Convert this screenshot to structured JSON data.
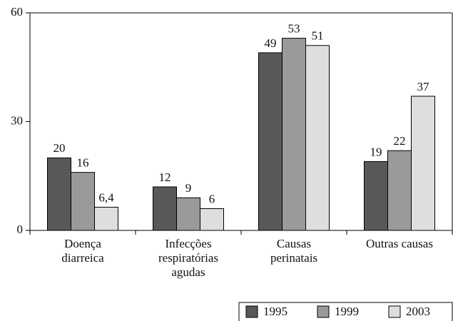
{
  "chart_data": {
    "type": "bar",
    "categories": [
      [
        "Doença",
        "diarreica"
      ],
      [
        "Infecções",
        "respiratórias",
        "agudas"
      ],
      [
        "Causas",
        "perinatais"
      ],
      [
        "Outras causas"
      ]
    ],
    "series": [
      {
        "name": "1995",
        "color": "#585858",
        "values": [
          20,
          12,
          49,
          19
        ]
      },
      {
        "name": "1999",
        "color": "#9a9a9a",
        "values": [
          16,
          9,
          53,
          22
        ]
      },
      {
        "name": "2003",
        "color": "#dedede",
        "values": [
          6.4,
          6,
          51,
          37
        ],
        "value_labels": [
          "6,4",
          "6",
          "51",
          "37"
        ]
      }
    ],
    "ylim": [
      0,
      60
    ],
    "yticks": [
      0,
      30,
      60
    ],
    "legend": "bottom-right"
  }
}
